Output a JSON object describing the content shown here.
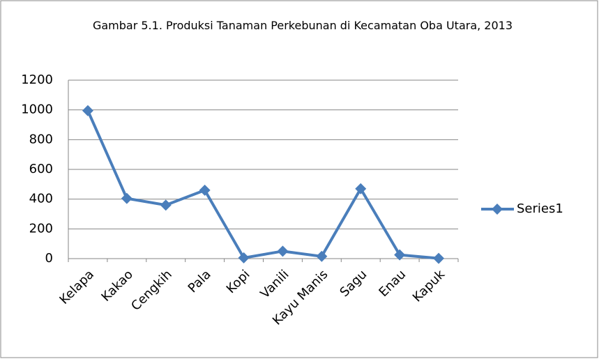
{
  "chart_data": {
    "type": "line",
    "title": "Gambar 5.1. Produksi Tanaman Perkebunan di Kecamatan Oba Utara, 2013",
    "categories": [
      "Kelapa",
      "Kakao",
      "Cengkih",
      "Pala",
      "Kopi",
      "Vanili",
      "Kayu Manis",
      "Sagu",
      "Enau",
      "Kapuk"
    ],
    "series": [
      {
        "name": "Series1",
        "color": "#4a7ebb",
        "values": [
          995,
          405,
          360,
          460,
          5,
          50,
          15,
          470,
          25,
          2
        ]
      }
    ],
    "ylim": [
      0,
      1200
    ],
    "yticks": [
      0,
      200,
      400,
      600,
      800,
      1000,
      1200
    ],
    "grid": true,
    "legend": "right"
  }
}
